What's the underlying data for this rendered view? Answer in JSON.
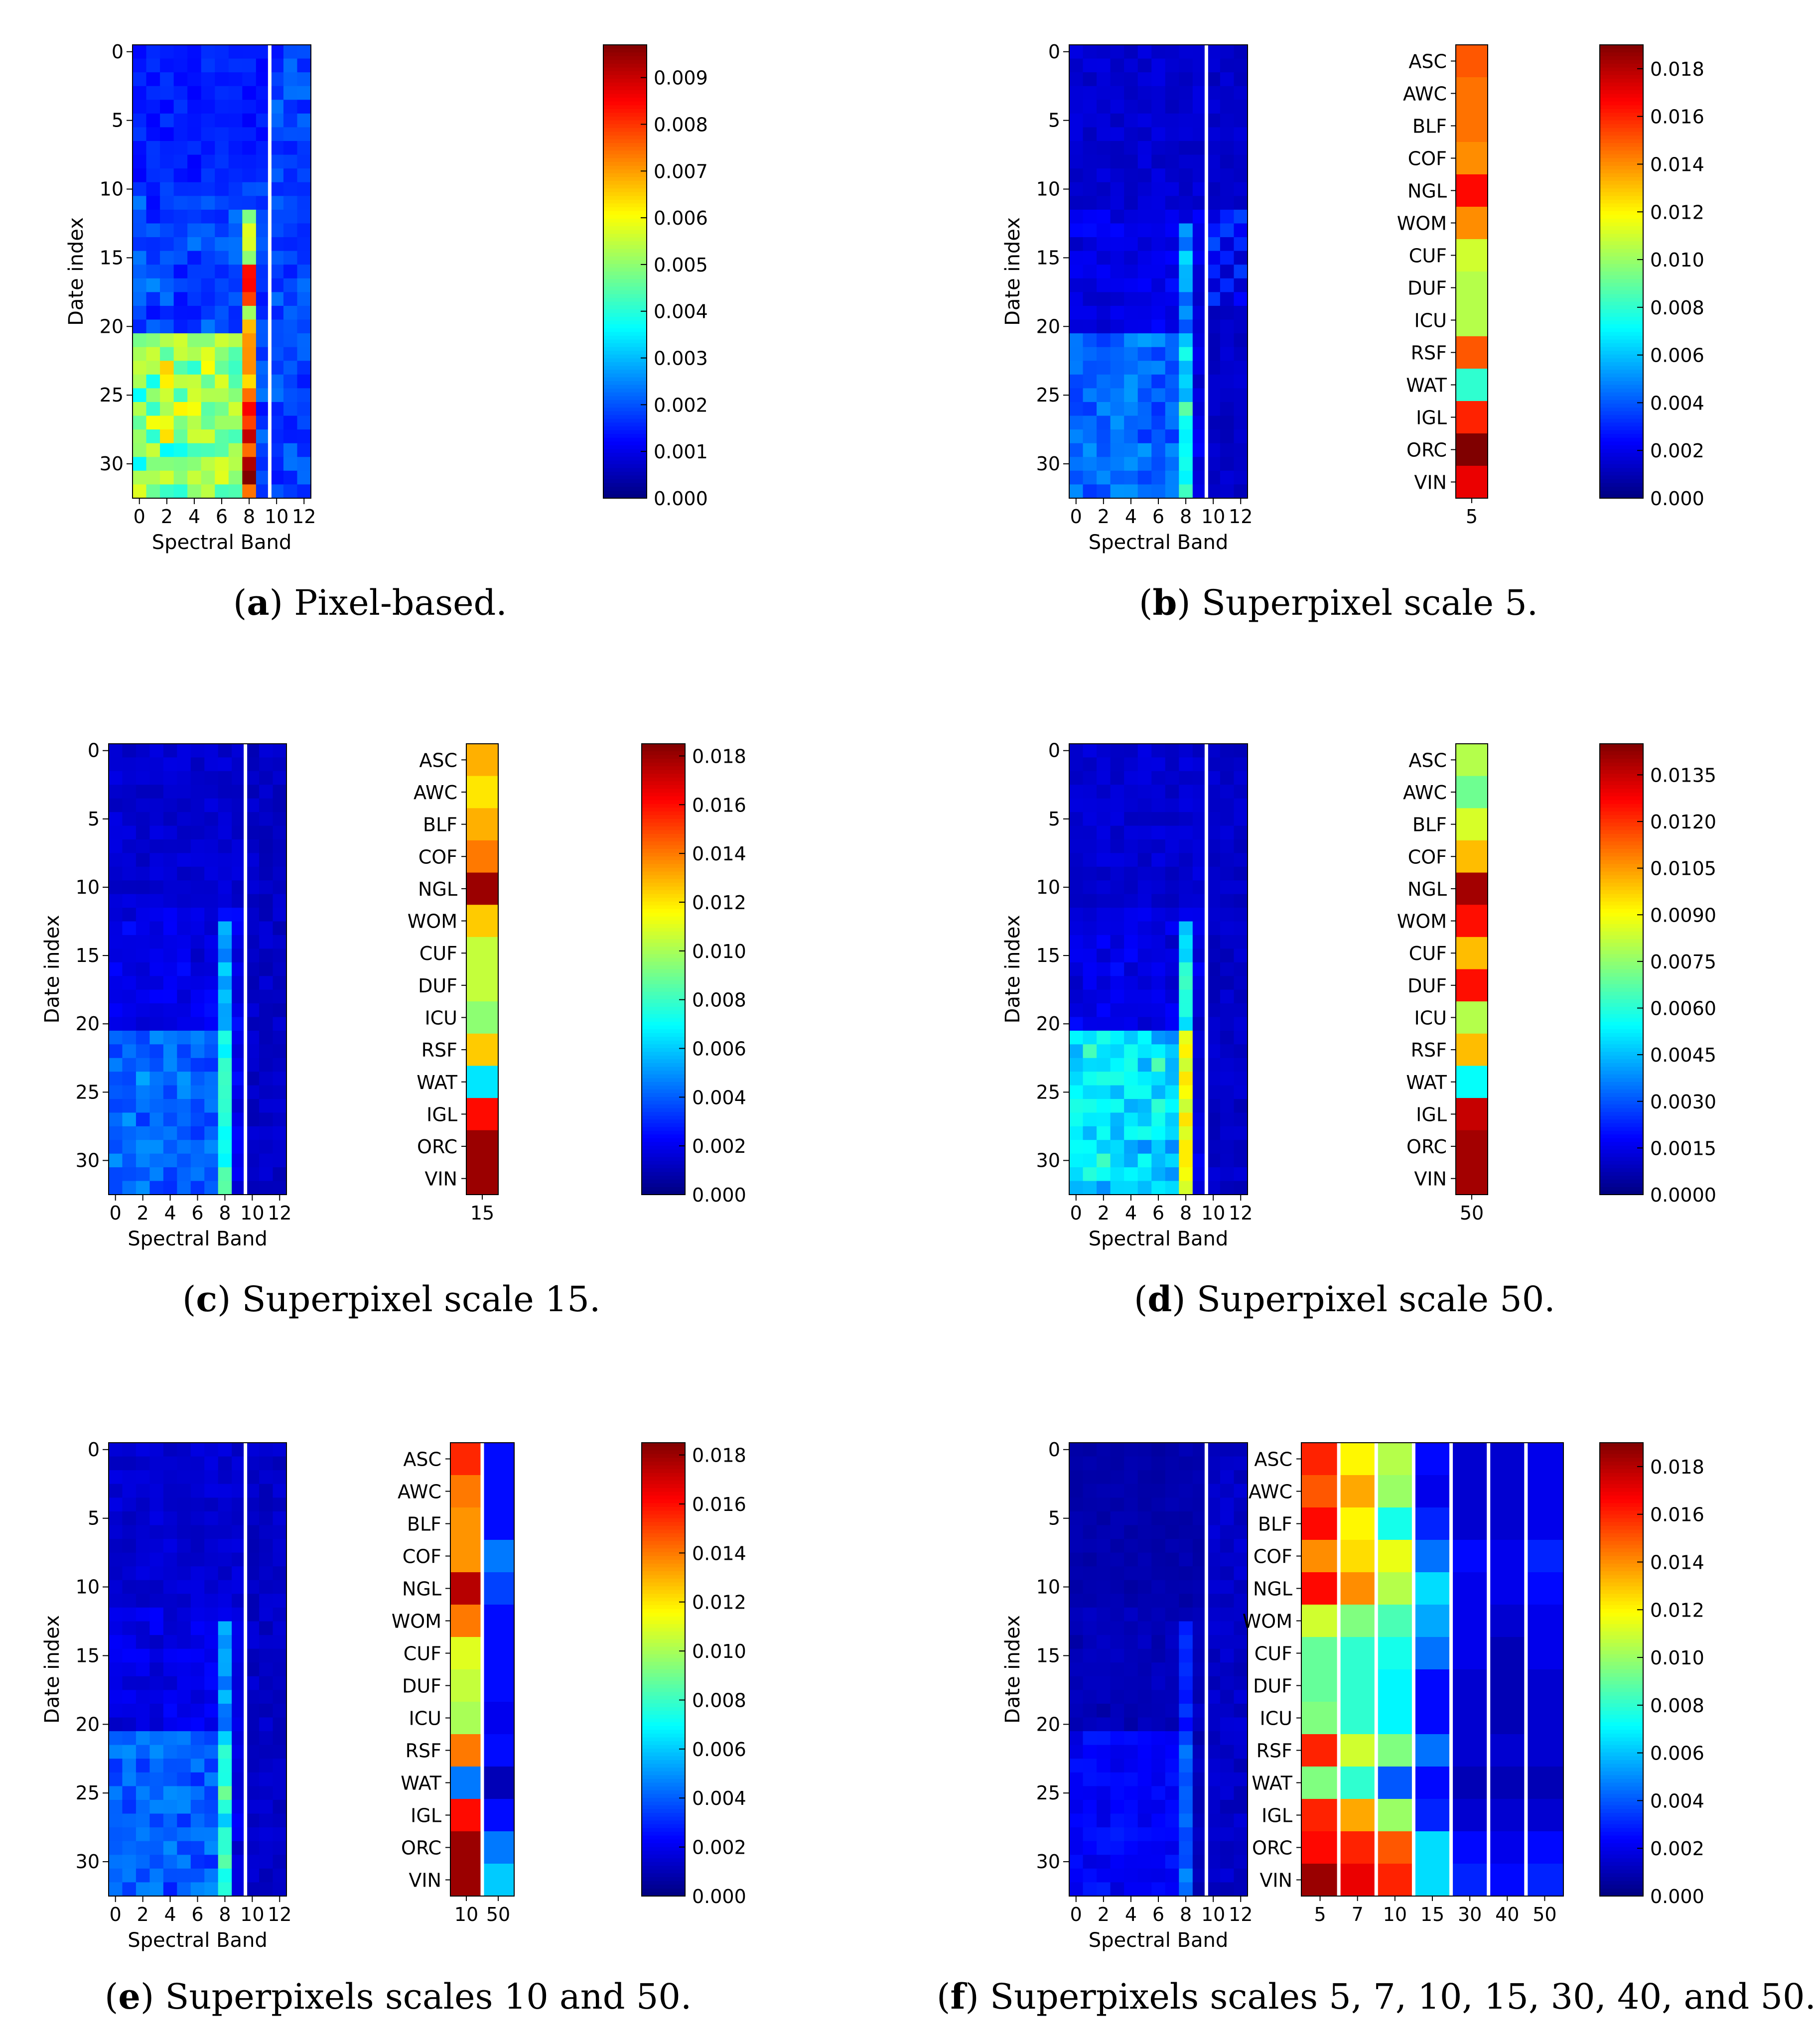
{
  "chart_data": [
    {
      "type": "heatmap",
      "panel": "a",
      "caption_letter": "a",
      "caption_text": "Pixel-based.",
      "ylabel": "Date index",
      "xlabel": "Spectral Band",
      "x_ticks": [
        "0",
        "2",
        "4",
        "6",
        "8",
        "10",
        "12"
      ],
      "y_ticks": [
        "0",
        "5",
        "10",
        "15",
        "20",
        "25",
        "30"
      ],
      "n_dates": 33,
      "n_bands": 13,
      "separator_after_band": 9,
      "vmax": 0.0097,
      "colorbar_ticks": [
        "0.000",
        "0.001",
        "0.002",
        "0.003",
        "0.004",
        "0.005",
        "0.006",
        "0.007",
        "0.008",
        "0.009"
      ],
      "class_labels": [],
      "scale_columns": [],
      "scale_values": []
    },
    {
      "type": "heatmap",
      "panel": "b",
      "caption_letter": "b",
      "caption_text": "Superpixel scale 5.",
      "ylabel": "Date index",
      "xlabel": "Spectral Band",
      "x_ticks": [
        "0",
        "2",
        "4",
        "6",
        "8",
        "10",
        "12"
      ],
      "y_ticks": [
        "0",
        "5",
        "10",
        "15",
        "20",
        "25",
        "30"
      ],
      "n_dates": 33,
      "n_bands": 13,
      "separator_after_band": 9,
      "vmax": 0.019,
      "colorbar_ticks": [
        "0.000",
        "0.002",
        "0.004",
        "0.006",
        "0.008",
        "0.010",
        "0.012",
        "0.014",
        "0.016",
        "0.018"
      ],
      "class_labels": [
        "ASC",
        "AWC",
        "BLF",
        "COF",
        "NGL",
        "WOM",
        "CUF",
        "DUF",
        "ICU",
        "RSF",
        "WAT",
        "IGL",
        "ORC",
        "VIN"
      ],
      "scale_columns": [
        "5"
      ],
      "scale_values": [
        [
          0.015,
          0.0145,
          0.0145,
          0.014,
          0.0165,
          0.014,
          0.011,
          0.0105,
          0.0105,
          0.015,
          0.008,
          0.016,
          0.019,
          0.017
        ]
      ]
    },
    {
      "type": "heatmap",
      "panel": "c",
      "caption_letter": "c",
      "caption_text": "Superpixel scale 15.",
      "ylabel": "Date index",
      "xlabel": "Spectral Band",
      "x_ticks": [
        "0",
        "2",
        "4",
        "6",
        "8",
        "10",
        "12"
      ],
      "y_ticks": [
        "0",
        "5",
        "10",
        "15",
        "20",
        "25",
        "30"
      ],
      "n_dates": 33,
      "n_bands": 13,
      "separator_after_band": 9,
      "vmax": 0.0185,
      "colorbar_ticks": [
        "0.000",
        "0.002",
        "0.004",
        "0.006",
        "0.008",
        "0.010",
        "0.012",
        "0.014",
        "0.016",
        "0.018"
      ],
      "class_labels": [
        "ASC",
        "AWC",
        "BLF",
        "COF",
        "NGL",
        "WOM",
        "CUF",
        "DUF",
        "ICU",
        "RSF",
        "WAT",
        "IGL",
        "ORC",
        "VIN"
      ],
      "scale_columns": [
        "15"
      ],
      "scale_values": [
        [
          0.013,
          0.012,
          0.013,
          0.014,
          0.018,
          0.0125,
          0.0105,
          0.0105,
          0.0095,
          0.0125,
          0.0065,
          0.016,
          0.018,
          0.018
        ]
      ]
    },
    {
      "type": "heatmap",
      "panel": "d",
      "caption_letter": "d",
      "caption_text": "Superpixel scale 50.",
      "ylabel": "Date index",
      "xlabel": "Spectral Band",
      "x_ticks": [
        "0",
        "2",
        "4",
        "6",
        "8",
        "10",
        "12"
      ],
      "y_ticks": [
        "0",
        "5",
        "10",
        "15",
        "20",
        "25",
        "30"
      ],
      "n_dates": 33,
      "n_bands": 13,
      "separator_after_band": 9,
      "vmax": 0.0145,
      "colorbar_ticks": [
        "0.0000",
        "0.0015",
        "0.0030",
        "0.0045",
        "0.0060",
        "0.0075",
        "0.0090",
        "0.0105",
        "0.0120",
        "0.0135"
      ],
      "class_labels": [
        "ASC",
        "AWC",
        "BLF",
        "COF",
        "NGL",
        "WOM",
        "CUF",
        "DUF",
        "ICU",
        "RSF",
        "WAT",
        "IGL",
        "ORC",
        "VIN"
      ],
      "scale_columns": [
        "50"
      ],
      "scale_values": [
        [
          0.008,
          0.007,
          0.0085,
          0.01,
          0.014,
          0.0125,
          0.01,
          0.0125,
          0.008,
          0.01,
          0.0055,
          0.0135,
          0.014,
          0.014
        ]
      ]
    },
    {
      "type": "heatmap",
      "panel": "e",
      "caption_letter": "e",
      "caption_text": "Superpixels scales 10 and 50.",
      "ylabel": "Date index",
      "xlabel": "Spectral Band",
      "x_ticks": [
        "0",
        "2",
        "4",
        "6",
        "8",
        "10",
        "12"
      ],
      "y_ticks": [
        "0",
        "5",
        "10",
        "15",
        "20",
        "25",
        "30"
      ],
      "n_dates": 33,
      "n_bands": 13,
      "separator_after_band": 9,
      "vmax": 0.0185,
      "colorbar_ticks": [
        "0.000",
        "0.002",
        "0.004",
        "0.006",
        "0.008",
        "0.010",
        "0.012",
        "0.014",
        "0.016",
        "0.018"
      ],
      "class_labels": [
        "ASC",
        "AWC",
        "BLF",
        "COF",
        "NGL",
        "WOM",
        "CUF",
        "DUF",
        "ICU",
        "RSF",
        "WAT",
        "IGL",
        "ORC",
        "VIN"
      ],
      "scale_columns": [
        "10",
        "50"
      ],
      "scale_values": [
        [
          0.0155,
          0.014,
          0.0135,
          0.0135,
          0.0175,
          0.014,
          0.011,
          0.0105,
          0.01,
          0.014,
          0.0045,
          0.016,
          0.018,
          0.018
        ],
        [
          0.0025,
          0.0025,
          0.0025,
          0.0045,
          0.0035,
          0.0025,
          0.0025,
          0.0025,
          0.002,
          0.0025,
          0.001,
          0.0025,
          0.0045,
          0.006
        ]
      ]
    },
    {
      "type": "heatmap",
      "panel": "f",
      "caption_letter": "f",
      "caption_text": "Superpixels scales 5, 7, 10, 15, 30, 40, and 50.",
      "ylabel": "Date index",
      "xlabel": "Spectral Band",
      "x_ticks": [
        "0",
        "2",
        "4",
        "6",
        "8",
        "10",
        "12"
      ],
      "y_ticks": [
        "0",
        "5",
        "10",
        "15",
        "20",
        "25",
        "30"
      ],
      "n_dates": 33,
      "n_bands": 13,
      "separator_after_band": 9,
      "vmax": 0.019,
      "colorbar_ticks": [
        "0.000",
        "0.002",
        "0.004",
        "0.006",
        "0.008",
        "0.010",
        "0.012",
        "0.014",
        "0.016",
        "0.018"
      ],
      "class_labels": [
        "ASC",
        "AWC",
        "BLF",
        "COF",
        "NGL",
        "WOM",
        "CUF",
        "DUF",
        "ICU",
        "RSF",
        "WAT",
        "IGL",
        "ORC",
        "VIN"
      ],
      "scale_columns": [
        "5",
        "7",
        "10",
        "15",
        "30",
        "40",
        "50"
      ],
      "scale_values": [
        [
          0.016,
          0.015,
          0.0165,
          0.014,
          0.0165,
          0.011,
          0.009,
          0.009,
          0.0095,
          0.016,
          0.0095,
          0.016,
          0.0165,
          0.0185
        ],
        [
          0.012,
          0.0135,
          0.012,
          0.0125,
          0.014,
          0.0095,
          0.008,
          0.008,
          0.008,
          0.011,
          0.008,
          0.0135,
          0.016,
          0.017
        ],
        [
          0.0105,
          0.01,
          0.0075,
          0.0115,
          0.0105,
          0.0085,
          0.0075,
          0.007,
          0.007,
          0.0095,
          0.004,
          0.01,
          0.015,
          0.016
        ],
        [
          0.0025,
          0.002,
          0.003,
          0.0045,
          0.0065,
          0.0055,
          0.0045,
          0.0025,
          0.0025,
          0.0045,
          0.0025,
          0.003,
          0.0065,
          0.0065
        ],
        [
          0.0015,
          0.0015,
          0.0015,
          0.0025,
          0.002,
          0.002,
          0.002,
          0.0015,
          0.0015,
          0.0015,
          0.001,
          0.0015,
          0.0025,
          0.003
        ],
        [
          0.0015,
          0.0015,
          0.0015,
          0.002,
          0.002,
          0.0015,
          0.001,
          0.001,
          0.001,
          0.0015,
          0.001,
          0.0015,
          0.002,
          0.0025
        ],
        [
          0.002,
          0.002,
          0.002,
          0.003,
          0.0025,
          0.002,
          0.002,
          0.0015,
          0.0015,
          0.0015,
          0.001,
          0.0015,
          0.0025,
          0.003
        ]
      ]
    }
  ]
}
